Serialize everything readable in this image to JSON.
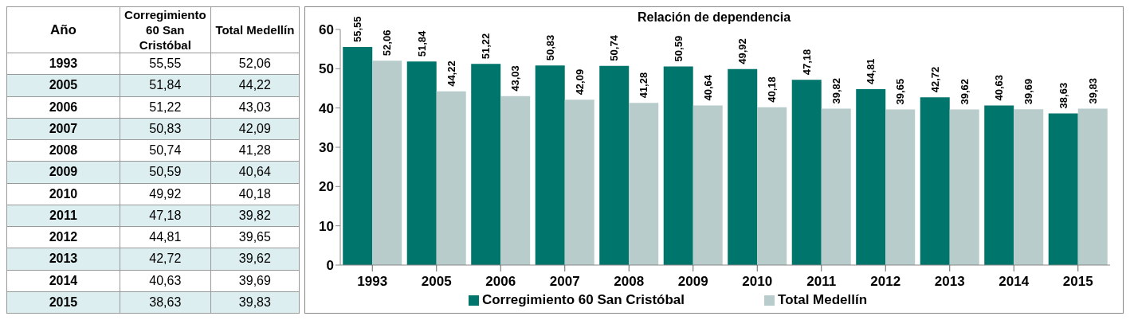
{
  "chart_data": {
    "type": "bar",
    "title": "Relación de dependencia",
    "categories": [
      "1993",
      "2005",
      "2006",
      "2007",
      "2008",
      "2009",
      "2010",
      "2011",
      "2012",
      "2013",
      "2014",
      "2015"
    ],
    "series": [
      {
        "name": "Corregimiento 60 San Cristóbal",
        "color": "#00756c",
        "values": [
          55.55,
          51.84,
          51.22,
          50.83,
          50.74,
          50.59,
          49.92,
          47.18,
          44.81,
          42.72,
          40.63,
          38.63
        ],
        "value_labels": [
          "55,55",
          "51,84",
          "51,22",
          "50,83",
          "50,74",
          "50,59",
          "49,92",
          "47,18",
          "44,81",
          "42,72",
          "40,63",
          "38,63"
        ]
      },
      {
        "name": "Total Medellín",
        "color": "#b8cccc",
        "values": [
          52.06,
          44.22,
          43.03,
          42.09,
          41.28,
          40.64,
          40.18,
          39.82,
          39.65,
          39.62,
          39.69,
          39.83
        ],
        "value_labels": [
          "52,06",
          "44,22",
          "43,03",
          "42,09",
          "41,28",
          "40,64",
          "40,18",
          "39,82",
          "39,65",
          "39,62",
          "39,69",
          "39,83"
        ]
      }
    ],
    "ylim": [
      0,
      60
    ],
    "yticks": [
      0,
      10,
      20,
      30,
      40,
      50,
      60
    ],
    "grid": false,
    "legend": "bottom",
    "annotations": [
      "Año"
    ]
  }
}
